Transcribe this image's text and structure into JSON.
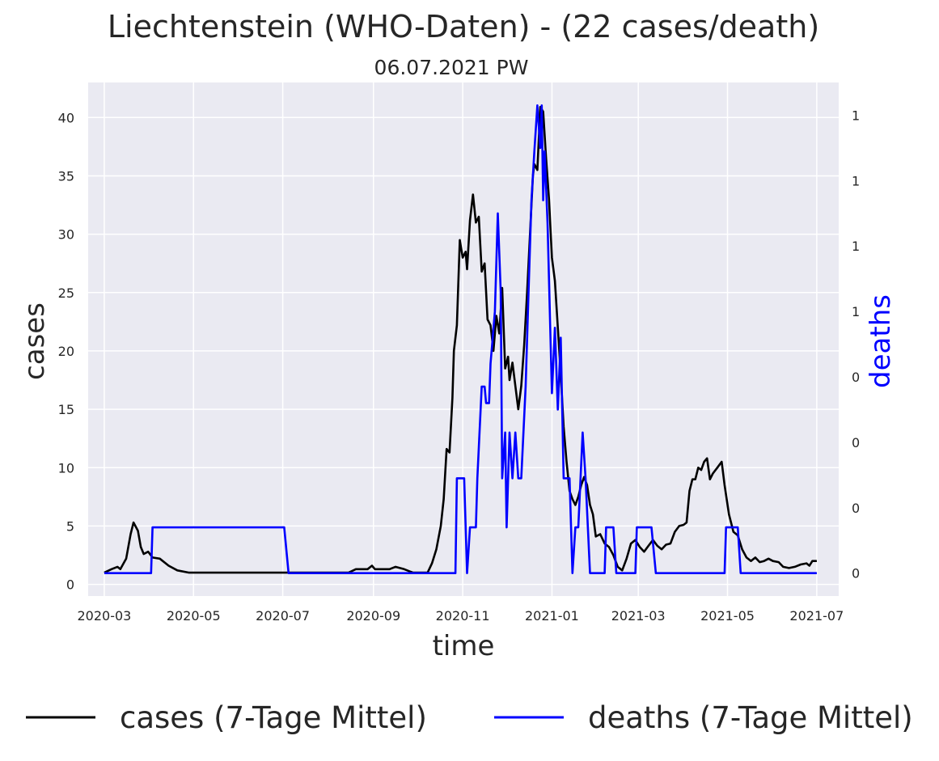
{
  "chart_data": {
    "type": "line",
    "title": "Liechtenstein (WHO-Daten) - (22 cases/death)",
    "subtitle": "06.07.2021 PW",
    "xlabel": "time",
    "ylabel": "cases",
    "y2label": "deaths",
    "x_ticks": [
      "2020-03",
      "2020-05",
      "2020-07",
      "2020-09",
      "2020-11",
      "2021-01",
      "2021-03",
      "2021-05",
      "2021-07"
    ],
    "y_ticks": [
      0,
      5,
      10,
      15,
      20,
      25,
      30,
      35,
      40
    ],
    "y2_ticks": [
      "0",
      "0",
      "0",
      "0",
      "1",
      "1",
      "1",
      "1"
    ],
    "y2_tick_values": [
      0,
      0.2,
      0.4,
      0.6,
      0.8,
      1.0,
      1.2,
      1.4
    ],
    "x_range": [
      "2020-02-19",
      "2021-07-16"
    ],
    "ylim": [
      -1,
      43
    ],
    "y2lim": [
      -0.07,
      1.5
    ],
    "grid": true,
    "legend_position": "bottom",
    "colors": {
      "cases": "#000000",
      "deaths": "#0000ff",
      "background": "#eaeaf2",
      "grid": "#ffffff"
    },
    "series": [
      {
        "name": "cases (7-Tage Mittel)",
        "axis": "left",
        "color": "#000000",
        "points": [
          [
            "2020-03-01",
            1.0
          ],
          [
            "2020-03-06",
            1.3
          ],
          [
            "2020-03-10",
            1.5
          ],
          [
            "2020-03-12",
            1.3
          ],
          [
            "2020-03-16",
            2.2
          ],
          [
            "2020-03-19",
            4.3
          ],
          [
            "2020-03-21",
            5.3
          ],
          [
            "2020-03-24",
            4.6
          ],
          [
            "2020-03-26",
            3.2
          ],
          [
            "2020-03-28",
            2.6
          ],
          [
            "2020-03-31",
            2.8
          ],
          [
            "2020-04-03",
            2.3
          ],
          [
            "2020-04-08",
            2.2
          ],
          [
            "2020-04-14",
            1.6
          ],
          [
            "2020-04-20",
            1.2
          ],
          [
            "2020-04-28",
            1.0
          ],
          [
            "2020-05-15",
            1.0
          ],
          [
            "2020-07-15",
            1.0
          ],
          [
            "2020-08-15",
            1.0
          ],
          [
            "2020-08-20",
            1.3
          ],
          [
            "2020-08-28",
            1.3
          ],
          [
            "2020-08-31",
            1.6
          ],
          [
            "2020-09-02",
            1.3
          ],
          [
            "2020-09-12",
            1.3
          ],
          [
            "2020-09-16",
            1.5
          ],
          [
            "2020-09-22",
            1.3
          ],
          [
            "2020-09-28",
            1.0
          ],
          [
            "2020-10-08",
            1.0
          ],
          [
            "2020-10-11",
            1.8
          ],
          [
            "2020-10-14",
            3.0
          ],
          [
            "2020-10-17",
            5.0
          ],
          [
            "2020-10-19",
            7.3
          ],
          [
            "2020-10-21",
            11.6
          ],
          [
            "2020-10-23",
            11.3
          ],
          [
            "2020-10-25",
            16.0
          ],
          [
            "2020-10-26",
            20.0
          ],
          [
            "2020-10-28",
            22.2
          ],
          [
            "2020-10-30",
            29.5
          ],
          [
            "2020-11-01",
            28.0
          ],
          [
            "2020-11-03",
            28.5
          ],
          [
            "2020-11-04",
            27.0
          ],
          [
            "2020-11-06",
            31.2
          ],
          [
            "2020-11-08",
            33.4
          ],
          [
            "2020-11-10",
            31.0
          ],
          [
            "2020-11-12",
            31.5
          ],
          [
            "2020-11-14",
            26.8
          ],
          [
            "2020-11-16",
            27.5
          ],
          [
            "2020-11-18",
            22.7
          ],
          [
            "2020-11-20",
            22.2
          ],
          [
            "2020-11-22",
            20.0
          ],
          [
            "2020-11-24",
            23.0
          ],
          [
            "2020-11-26",
            21.5
          ],
          [
            "2020-11-28",
            25.4
          ],
          [
            "2020-11-30",
            18.5
          ],
          [
            "2020-12-02",
            19.5
          ],
          [
            "2020-12-03",
            17.5
          ],
          [
            "2020-12-05",
            19.0
          ],
          [
            "2020-12-07",
            17.0
          ],
          [
            "2020-12-09",
            15.0
          ],
          [
            "2020-12-11",
            17.0
          ],
          [
            "2020-12-13",
            20.5
          ],
          [
            "2020-12-15",
            25.0
          ],
          [
            "2020-12-17",
            30.0
          ],
          [
            "2020-12-19",
            35.0
          ],
          [
            "2020-12-20",
            36.0
          ],
          [
            "2020-12-22",
            35.5
          ],
          [
            "2020-12-24",
            40.9
          ],
          [
            "2020-12-26",
            40.5
          ],
          [
            "2020-12-28",
            36.5
          ],
          [
            "2020-12-30",
            33.0
          ],
          [
            "2021-01-01",
            28.0
          ],
          [
            "2021-01-03",
            26.0
          ],
          [
            "2021-01-05",
            22.0
          ],
          [
            "2021-01-07",
            18.0
          ],
          [
            "2021-01-09",
            13.5
          ],
          [
            "2021-01-11",
            10.5
          ],
          [
            "2021-01-13",
            8.0
          ],
          [
            "2021-01-15",
            7.3
          ],
          [
            "2021-01-17",
            6.8
          ],
          [
            "2021-01-19",
            7.5
          ],
          [
            "2021-01-21",
            8.5
          ],
          [
            "2021-01-23",
            9.2
          ],
          [
            "2021-01-25",
            8.5
          ],
          [
            "2021-01-27",
            6.8
          ],
          [
            "2021-01-29",
            6.0
          ],
          [
            "2021-01-31",
            4.1
          ],
          [
            "2021-02-03",
            4.3
          ],
          [
            "2021-02-06",
            3.5
          ],
          [
            "2021-02-09",
            3.2
          ],
          [
            "2021-02-12",
            2.5
          ],
          [
            "2021-02-15",
            1.5
          ],
          [
            "2021-02-18",
            1.2
          ],
          [
            "2021-02-21",
            2.2
          ],
          [
            "2021-02-24",
            3.5
          ],
          [
            "2021-02-27",
            3.8
          ],
          [
            "2021-03-02",
            3.2
          ],
          [
            "2021-03-05",
            2.8
          ],
          [
            "2021-03-08",
            3.3
          ],
          [
            "2021-03-11",
            3.8
          ],
          [
            "2021-03-14",
            3.3
          ],
          [
            "2021-03-17",
            3.0
          ],
          [
            "2021-03-20",
            3.4
          ],
          [
            "2021-03-23",
            3.5
          ],
          [
            "2021-03-26",
            4.5
          ],
          [
            "2021-03-29",
            5.0
          ],
          [
            "2021-04-01",
            5.1
          ],
          [
            "2021-04-03",
            5.3
          ],
          [
            "2021-04-05",
            8.0
          ],
          [
            "2021-04-07",
            9.0
          ],
          [
            "2021-04-09",
            9.0
          ],
          [
            "2021-04-11",
            10.0
          ],
          [
            "2021-04-13",
            9.8
          ],
          [
            "2021-04-15",
            10.5
          ],
          [
            "2021-04-17",
            10.8
          ],
          [
            "2021-04-19",
            9.0
          ],
          [
            "2021-04-21",
            9.5
          ],
          [
            "2021-04-24",
            10.0
          ],
          [
            "2021-04-27",
            10.5
          ],
          [
            "2021-04-29",
            8.5
          ],
          [
            "2021-05-02",
            6.0
          ],
          [
            "2021-05-05",
            4.5
          ],
          [
            "2021-05-08",
            4.2
          ],
          [
            "2021-05-11",
            3.0
          ],
          [
            "2021-05-14",
            2.3
          ],
          [
            "2021-05-17",
            2.0
          ],
          [
            "2021-05-20",
            2.3
          ],
          [
            "2021-05-23",
            1.9
          ],
          [
            "2021-05-26",
            2.0
          ],
          [
            "2021-05-29",
            2.2
          ],
          [
            "2021-06-01",
            2.0
          ],
          [
            "2021-06-05",
            1.9
          ],
          [
            "2021-06-08",
            1.5
          ],
          [
            "2021-06-12",
            1.4
          ],
          [
            "2021-06-16",
            1.5
          ],
          [
            "2021-06-20",
            1.7
          ],
          [
            "2021-06-24",
            1.8
          ],
          [
            "2021-06-26",
            1.6
          ],
          [
            "2021-06-28",
            2.0
          ],
          [
            "2021-07-01",
            2.0
          ]
        ]
      },
      {
        "name": "deaths (7-Tage Mittel)",
        "axis": "right",
        "color": "#0000ff",
        "points": [
          [
            "2020-03-01",
            0.0
          ],
          [
            "2020-04-02",
            0.0
          ],
          [
            "2020-04-03",
            0.14
          ],
          [
            "2020-07-02",
            0.14
          ],
          [
            "2020-07-05",
            0.0
          ],
          [
            "2020-10-27",
            0.0
          ],
          [
            "2020-10-28",
            0.29
          ],
          [
            "2020-11-02",
            0.29
          ],
          [
            "2020-11-04",
            0.0
          ],
          [
            "2020-11-06",
            0.14
          ],
          [
            "2020-11-10",
            0.14
          ],
          [
            "2020-11-11",
            0.29
          ],
          [
            "2020-11-14",
            0.57
          ],
          [
            "2020-11-16",
            0.57
          ],
          [
            "2020-11-17",
            0.52
          ],
          [
            "2020-11-19",
            0.52
          ],
          [
            "2020-11-20",
            0.64
          ],
          [
            "2020-11-23",
            0.8
          ],
          [
            "2020-11-25",
            1.1
          ],
          [
            "2020-11-27",
            0.86
          ],
          [
            "2020-11-28",
            0.29
          ],
          [
            "2020-11-30",
            0.43
          ],
          [
            "2020-12-01",
            0.14
          ],
          [
            "2020-12-03",
            0.43
          ],
          [
            "2020-12-05",
            0.29
          ],
          [
            "2020-12-07",
            0.43
          ],
          [
            "2020-12-09",
            0.29
          ],
          [
            "2020-12-11",
            0.29
          ],
          [
            "2020-12-14",
            0.57
          ],
          [
            "2020-12-16",
            0.86
          ],
          [
            "2020-12-18",
            1.14
          ],
          [
            "2020-12-20",
            1.29
          ],
          [
            "2020-12-22",
            1.43
          ],
          [
            "2020-12-24",
            1.3
          ],
          [
            "2020-12-25",
            1.43
          ],
          [
            "2020-12-26",
            1.14
          ],
          [
            "2020-12-27",
            1.29
          ],
          [
            "2020-12-29",
            1.07
          ],
          [
            "2021-01-01",
            0.55
          ],
          [
            "2021-01-03",
            0.75
          ],
          [
            "2021-01-05",
            0.5
          ],
          [
            "2021-01-07",
            0.72
          ],
          [
            "2021-01-09",
            0.29
          ],
          [
            "2021-01-13",
            0.29
          ],
          [
            "2021-01-15",
            0.0
          ],
          [
            "2021-01-17",
            0.14
          ],
          [
            "2021-01-19",
            0.14
          ],
          [
            "2021-01-22",
            0.43
          ],
          [
            "2021-01-24",
            0.29
          ],
          [
            "2021-01-27",
            0.0
          ],
          [
            "2021-02-06",
            0.0
          ],
          [
            "2021-02-07",
            0.14
          ],
          [
            "2021-02-12",
            0.14
          ],
          [
            "2021-02-14",
            0.0
          ],
          [
            "2021-02-27",
            0.0
          ],
          [
            "2021-02-28",
            0.14
          ],
          [
            "2021-03-10",
            0.14
          ],
          [
            "2021-03-13",
            0.0
          ],
          [
            "2021-04-29",
            0.0
          ],
          [
            "2021-04-30",
            0.14
          ],
          [
            "2021-05-08",
            0.14
          ],
          [
            "2021-05-10",
            0.0
          ],
          [
            "2021-07-01",
            0.0
          ]
        ]
      }
    ]
  }
}
